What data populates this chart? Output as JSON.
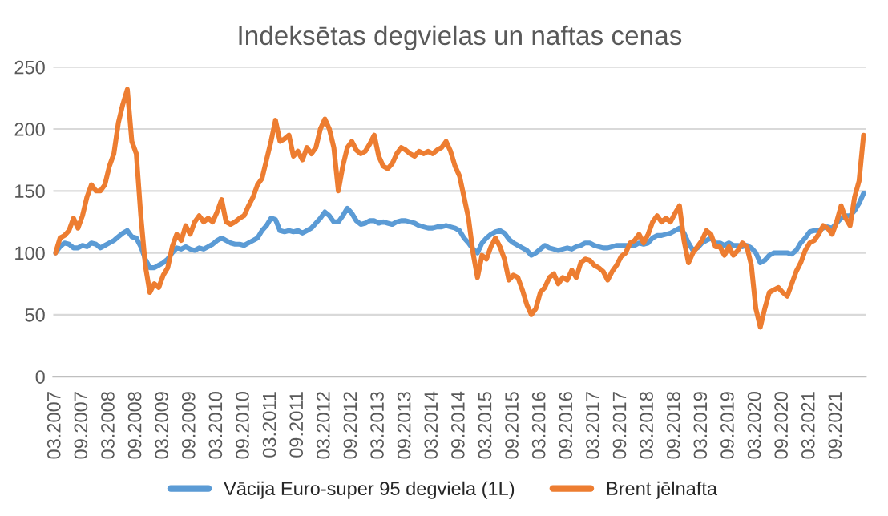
{
  "chart_data": {
    "type": "line",
    "title": "Indeksētas degvielas un naftas cenas",
    "categories": [
      "03.2007",
      null,
      null,
      null,
      null,
      null,
      "09.2007",
      null,
      null,
      null,
      null,
      null,
      "03.2008",
      null,
      null,
      null,
      null,
      null,
      "09.2008",
      null,
      null,
      null,
      null,
      null,
      "03.2009",
      null,
      null,
      null,
      null,
      null,
      "09.2009",
      null,
      null,
      null,
      null,
      null,
      "03.2010",
      null,
      null,
      null,
      null,
      null,
      "09.2010",
      null,
      null,
      null,
      null,
      null,
      "03.2011",
      null,
      null,
      null,
      null,
      null,
      "09.2011",
      null,
      null,
      null,
      null,
      null,
      "03.2012",
      null,
      null,
      null,
      null,
      null,
      "09.2012",
      null,
      null,
      null,
      null,
      null,
      "03.2013",
      null,
      null,
      null,
      null,
      null,
      "09.2013",
      null,
      null,
      null,
      null,
      null,
      "03.2014",
      null,
      null,
      null,
      null,
      null,
      "09.2014",
      null,
      null,
      null,
      null,
      null,
      "03.2015",
      null,
      null,
      null,
      null,
      null,
      "09.2015",
      null,
      null,
      null,
      null,
      null,
      "03.2016",
      null,
      null,
      null,
      null,
      null,
      "09.2016",
      null,
      null,
      null,
      null,
      null,
      "03.2017",
      null,
      null,
      null,
      null,
      null,
      "09.2017",
      null,
      null,
      null,
      null,
      null,
      "03.2018",
      null,
      null,
      null,
      null,
      null,
      "09.2018",
      null,
      null,
      null,
      null,
      null,
      "03.2019",
      null,
      null,
      null,
      null,
      null,
      "09.2019",
      null,
      null,
      null,
      null,
      null,
      "03.2020",
      null,
      null,
      null,
      null,
      null,
      "09.2020",
      null,
      null,
      null,
      null,
      null,
      "03.2021",
      null,
      null,
      null,
      null,
      null,
      "09.2021",
      null,
      null,
      null,
      null,
      null,
      null
    ],
    "series": [
      {
        "name": "Vācija Euro-super 95 degviela (1L)",
        "color": "#5b9bd5",
        "values": [
          100,
          105,
          108,
          107,
          104,
          104,
          106,
          105,
          108,
          107,
          104,
          106,
          108,
          110,
          113,
          116,
          118,
          113,
          112,
          105,
          95,
          88,
          88,
          90,
          92,
          95,
          100,
          104,
          103,
          105,
          103,
          102,
          104,
          103,
          105,
          107,
          110,
          112,
          110,
          108,
          107,
          107,
          106,
          108,
          110,
          112,
          118,
          122,
          128,
          127,
          118,
          117,
          118,
          117,
          118,
          116,
          118,
          120,
          124,
          128,
          133,
          130,
          125,
          125,
          130,
          136,
          132,
          126,
          123,
          124,
          126,
          126,
          124,
          125,
          124,
          123,
          125,
          126,
          126,
          125,
          124,
          122,
          121,
          120,
          120,
          121,
          121,
          122,
          121,
          120,
          118,
          112,
          108,
          103,
          100,
          108,
          112,
          115,
          117,
          118,
          116,
          111,
          108,
          106,
          104,
          102,
          98,
          100,
          103,
          106,
          104,
          103,
          102,
          103,
          104,
          103,
          105,
          106,
          108,
          108,
          106,
          105,
          104,
          104,
          105,
          106,
          106,
          106,
          106,
          106,
          108,
          107,
          108,
          112,
          114,
          114,
          115,
          116,
          118,
          120,
          116,
          108,
          102,
          104,
          108,
          110,
          112,
          108,
          108,
          106,
          108,
          106,
          106,
          105,
          106,
          104,
          100,
          92,
          94,
          98,
          100,
          100,
          100,
          100,
          99,
          102,
          108,
          112,
          117,
          118,
          118,
          120,
          121,
          120,
          124,
          128,
          130,
          130,
          134,
          140,
          148
        ]
      },
      {
        "name": "Brent jēlnafta",
        "color": "#ed7d31",
        "values": [
          100,
          112,
          114,
          118,
          128,
          120,
          130,
          145,
          155,
          150,
          150,
          155,
          170,
          180,
          205,
          220,
          232,
          190,
          180,
          130,
          90,
          68,
          75,
          72,
          82,
          88,
          105,
          115,
          110,
          122,
          115,
          125,
          130,
          125,
          128,
          125,
          133,
          143,
          125,
          123,
          125,
          128,
          130,
          138,
          145,
          155,
          160,
          175,
          190,
          207,
          190,
          192,
          195,
          178,
          182,
          175,
          185,
          180,
          185,
          200,
          208,
          200,
          185,
          150,
          170,
          185,
          190,
          183,
          180,
          182,
          188,
          195,
          178,
          170,
          168,
          172,
          180,
          185,
          183,
          180,
          178,
          182,
          180,
          182,
          180,
          183,
          185,
          190,
          182,
          170,
          162,
          145,
          128,
          100,
          80,
          98,
          95,
          105,
          112,
          105,
          95,
          78,
          82,
          80,
          70,
          58,
          50,
          55,
          68,
          72,
          80,
          83,
          75,
          80,
          78,
          86,
          80,
          92,
          95,
          94,
          90,
          88,
          85,
          78,
          85,
          90,
          97,
          100,
          108,
          110,
          115,
          108,
          115,
          125,
          130,
          125,
          128,
          125,
          132,
          138,
          110,
          92,
          100,
          105,
          110,
          118,
          115,
          105,
          105,
          98,
          105,
          98,
          102,
          108,
          105,
          90,
          55,
          40,
          55,
          68,
          70,
          72,
          68,
          65,
          75,
          85,
          92,
          102,
          108,
          110,
          115,
          122,
          120,
          115,
          125,
          138,
          128,
          122,
          145,
          158,
          195
        ]
      }
    ],
    "ylim": [
      0,
      250
    ],
    "yticks": [
      0,
      50,
      100,
      150,
      200,
      250
    ],
    "grid": "y",
    "legend": "bottom",
    "line_style": "solid",
    "marker": "none"
  }
}
